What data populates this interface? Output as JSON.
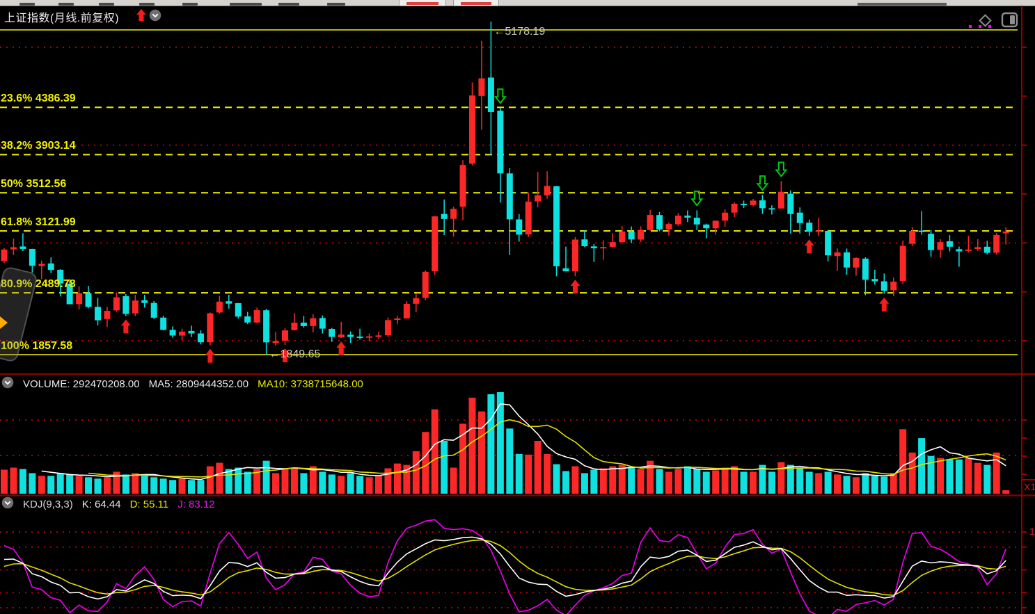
{
  "title": {
    "text": "上证指数(月线.前复权)"
  },
  "colors": {
    "up": "#fc2828",
    "down": "#0fe0e0",
    "fib": "#f2f200",
    "grid_dot": "#b20000",
    "separator": "#7c0404",
    "axis": "#a00000",
    "ma5": "#ffffff",
    "ma10": "#e0e000",
    "k_line": "#ffffff",
    "d_line": "#e0e000",
    "j_line": "#e800e8",
    "buy_signal": "#f51c1c",
    "sell_signal": "#00c814",
    "annotation": "#c9c9c9"
  },
  "volume_pane": {
    "header": {
      "volume": "VOLUME: 292470208.00",
      "ma5": "MA5: 2809444352.00",
      "ma10": "MA10: 3738715648.00"
    },
    "axis_label": "X1"
  },
  "kdj_pane": {
    "header": {
      "name": "KDJ(9,3,3)",
      "k": "K: 64.44",
      "d": "D: 55.11",
      "j": "J: 83.12"
    },
    "axis_label": "1"
  },
  "chart_data": {
    "type": "candlestick",
    "periodicity": "monthly",
    "price_high": 5178.19,
    "price_low": 1849.65,
    "h_gridline_prices": [
      5000,
      4000,
      3000,
      2000
    ],
    "fib_levels": [
      {
        "label": "",
        "price": 5178.19,
        "style": "solid"
      },
      {
        "label": "23.6% 4386.39",
        "price": 4386.39,
        "style": "dashed"
      },
      {
        "label": "38.2% 3903.14",
        "price": 3903.14,
        "style": "dashed"
      },
      {
        "label": "50% 3512.56",
        "price": 3512.56,
        "style": "dashed"
      },
      {
        "label": "61.8% 3121.99",
        "price": 3121.99,
        "style": "dashed"
      },
      {
        "label": "80.9% 2489.78",
        "price": 2489.78,
        "style": "dashed"
      },
      {
        "label": "100% 1857.58",
        "price": 1857.58,
        "style": "solid"
      }
    ],
    "annotations": [
      {
        "text": "←5178.19",
        "anchor_index": 52,
        "position": "peak"
      },
      {
        "text": "←1849.65",
        "anchor_index": 28,
        "position": "trough"
      }
    ],
    "signals": {
      "buy_indices": [
        13,
        22,
        30,
        36,
        61,
        86,
        94
      ],
      "sell_indices": [
        53,
        74,
        81,
        83
      ]
    },
    "kdj_gridline_values": [
      100,
      80,
      50,
      20,
      0
    ],
    "ohlc": [
      [
        2790,
        2918,
        2770,
        2905
      ],
      [
        2906,
        3012,
        2850,
        2928
      ],
      [
        2935,
        3067,
        2890,
        2911
      ],
      [
        2911,
        2912,
        2676,
        2743
      ],
      [
        2740,
        2795,
        2610,
        2762
      ],
      [
        2766,
        2826,
        2670,
        2701
      ],
      [
        2703,
        2708,
        2437,
        2567
      ],
      [
        2565,
        2611,
        2359,
        2359
      ],
      [
        2360,
        2536,
        2307,
        2468
      ],
      [
        2470,
        2543,
        2319,
        2333
      ],
      [
        2333,
        2423,
        2149,
        2199
      ],
      [
        2212,
        2335,
        2132,
        2293
      ],
      [
        2298,
        2478,
        2284,
        2428
      ],
      [
        2439,
        2460,
        2242,
        2263
      ],
      [
        2268,
        2453,
        2242,
        2396
      ],
      [
        2399,
        2453,
        2326,
        2372
      ],
      [
        2372,
        2391,
        2210,
        2225
      ],
      [
        2226,
        2245,
        2100,
        2103
      ],
      [
        2104,
        2138,
        2026,
        2047
      ],
      [
        2047,
        2115,
        1999,
        2086
      ],
      [
        2093,
        2146,
        2032,
        2068
      ],
      [
        2068,
        2099,
        1959,
        1980
      ],
      [
        1980,
        2277,
        1949,
        2269
      ],
      [
        2277,
        2444,
        2264,
        2385
      ],
      [
        2389,
        2453,
        2316,
        2365
      ],
      [
        2370,
        2372,
        2217,
        2236
      ],
      [
        2238,
        2283,
        2161,
        2177
      ],
      [
        2177,
        2325,
        2171,
        2300
      ],
      [
        2299,
        2313,
        1849.65,
        1979
      ],
      [
        1972,
        2084,
        1946,
        1993
      ],
      [
        1996,
        2123,
        1954,
        2098
      ],
      [
        2101,
        2270,
        2098,
        2175
      ],
      [
        2176,
        2242,
        2126,
        2141
      ],
      [
        2142,
        2260,
        2078,
        2220
      ],
      [
        2222,
        2248,
        2068,
        2116
      ],
      [
        2113,
        2123,
        1984,
        2033
      ],
      [
        2030,
        2184,
        2022,
        2056
      ],
      [
        2055,
        2088,
        1974,
        2033
      ],
      [
        2037,
        2115,
        2006,
        2026
      ],
      [
        2028,
        2068,
        1991,
        2039
      ],
      [
        2038,
        2085,
        2011,
        2048
      ],
      [
        2050,
        2227,
        2033,
        2201
      ],
      [
        2204,
        2243,
        2160,
        2217
      ],
      [
        2218,
        2391,
        2216,
        2363
      ],
      [
        2364,
        2465,
        2279,
        2420
      ],
      [
        2422,
        2696,
        2400,
        2683
      ],
      [
        2688,
        3240,
        2652,
        3235
      ],
      [
        3259,
        3404,
        3049,
        3210
      ],
      [
        3211,
        3330,
        3033,
        3310
      ],
      [
        3332,
        3796,
        3198,
        3748
      ],
      [
        3761,
        4572,
        3742,
        4441
      ],
      [
        4437,
        4986,
        4099,
        4612
      ],
      [
        4620,
        5178.19,
        3848,
        4277
      ],
      [
        4289,
        4317,
        3373,
        3664
      ],
      [
        3664,
        3716,
        2850,
        3206
      ],
      [
        3205,
        3257,
        2983,
        3053
      ],
      [
        3055,
        3474,
        3031,
        3383
      ],
      [
        3385,
        3679,
        3326,
        3445
      ],
      [
        3445,
        3685,
        3412,
        3539
      ],
      [
        3536,
        3539,
        2638,
        2738
      ],
      [
        2717,
        2934,
        2687,
        2688
      ],
      [
        2687,
        3028,
        2639,
        3004
      ],
      [
        3006,
        3097,
        2930,
        2938
      ],
      [
        2936,
        2960,
        2781,
        2917
      ],
      [
        2917,
        2998,
        2803,
        2930
      ],
      [
        2932,
        3069,
        2928,
        2979
      ],
      [
        2979,
        3140,
        2969,
        3085
      ],
      [
        3085,
        3135,
        2969,
        3005
      ],
      [
        3004,
        3137,
        2979,
        3100
      ],
      [
        3100,
        3301,
        3093,
        3250
      ],
      [
        3249,
        3279,
        3087,
        3104
      ],
      [
        3105,
        3175,
        3044,
        3159
      ],
      [
        3157,
        3268,
        3140,
        3242
      ],
      [
        3243,
        3295,
        3179,
        3223
      ],
      [
        3222,
        3296,
        3097,
        3155
      ],
      [
        3154,
        3163,
        3016,
        3117
      ],
      [
        3116,
        3193,
        3052,
        3192
      ],
      [
        3193,
        3306,
        3131,
        3273
      ],
      [
        3273,
        3374,
        3229,
        3361
      ],
      [
        3361,
        3392,
        3320,
        3349
      ],
      [
        3349,
        3410,
        3334,
        3393
      ],
      [
        3395,
        3450,
        3259,
        3317
      ],
      [
        3317,
        3346,
        3254,
        3307
      ],
      [
        3314,
        3587,
        3314,
        3481
      ],
      [
        3461,
        3495,
        3062,
        3259
      ],
      [
        3273,
        3325,
        3063,
        3169
      ],
      [
        3172,
        3204,
        3041,
        3082
      ],
      [
        3090,
        3219,
        3041,
        3095
      ],
      [
        3091,
        3102,
        2786,
        2847
      ],
      [
        2840,
        2915,
        2691,
        2876
      ],
      [
        2876,
        2915,
        2653,
        2725
      ],
      [
        2725,
        2827,
        2644,
        2821
      ],
      [
        2814,
        2827,
        2449,
        2603
      ],
      [
        2611,
        2703,
        2555,
        2588
      ],
      [
        2588,
        2666,
        2462,
        2494
      ],
      [
        2498,
        2625,
        2440,
        2584
      ],
      [
        2591,
        2995,
        2560,
        2941
      ],
      [
        2962,
        3129,
        2938,
        3091
      ],
      [
        3094,
        3288,
        3052,
        3078
      ],
      [
        3062,
        3098,
        2833,
        2899
      ],
      [
        2901,
        3008,
        2822,
        2979
      ],
      [
        2987,
        3048,
        2886,
        2933
      ],
      [
        2908,
        2935,
        2733,
        2886
      ],
      [
        2895,
        3042,
        2875,
        2905
      ],
      [
        2909,
        3008,
        2891,
        2929
      ],
      [
        2933,
        2993,
        2857,
        2872
      ],
      [
        2873,
        3070,
        2857,
        3050
      ],
      [
        3066,
        3127,
        2955,
        3085
      ]
    ],
    "volume": [
      35,
      38,
      36,
      30,
      26,
      26,
      30,
      28,
      26,
      24,
      22,
      24,
      32,
      28,
      30,
      26,
      24,
      22,
      20,
      22,
      20,
      20,
      40,
      45,
      36,
      38,
      32,
      36,
      48,
      30,
      36,
      38,
      30,
      40,
      32,
      28,
      26,
      30,
      26,
      24,
      26,
      37,
      44,
      42,
      62,
      90,
      123,
      77,
      38,
      102,
      140,
      120,
      145,
      148,
      95,
      58,
      57,
      77,
      58,
      43,
      33,
      40,
      30,
      35,
      37,
      40,
      42,
      38,
      36,
      48,
      36,
      32,
      36,
      40,
      36,
      32,
      34,
      38,
      40,
      32,
      32,
      42,
      32,
      46,
      42,
      38,
      32,
      30,
      32,
      28,
      26,
      24,
      30,
      26,
      25,
      30,
      94,
      60,
      81,
      55,
      52,
      50,
      50,
      52,
      45,
      42,
      60,
      5
    ]
  }
}
